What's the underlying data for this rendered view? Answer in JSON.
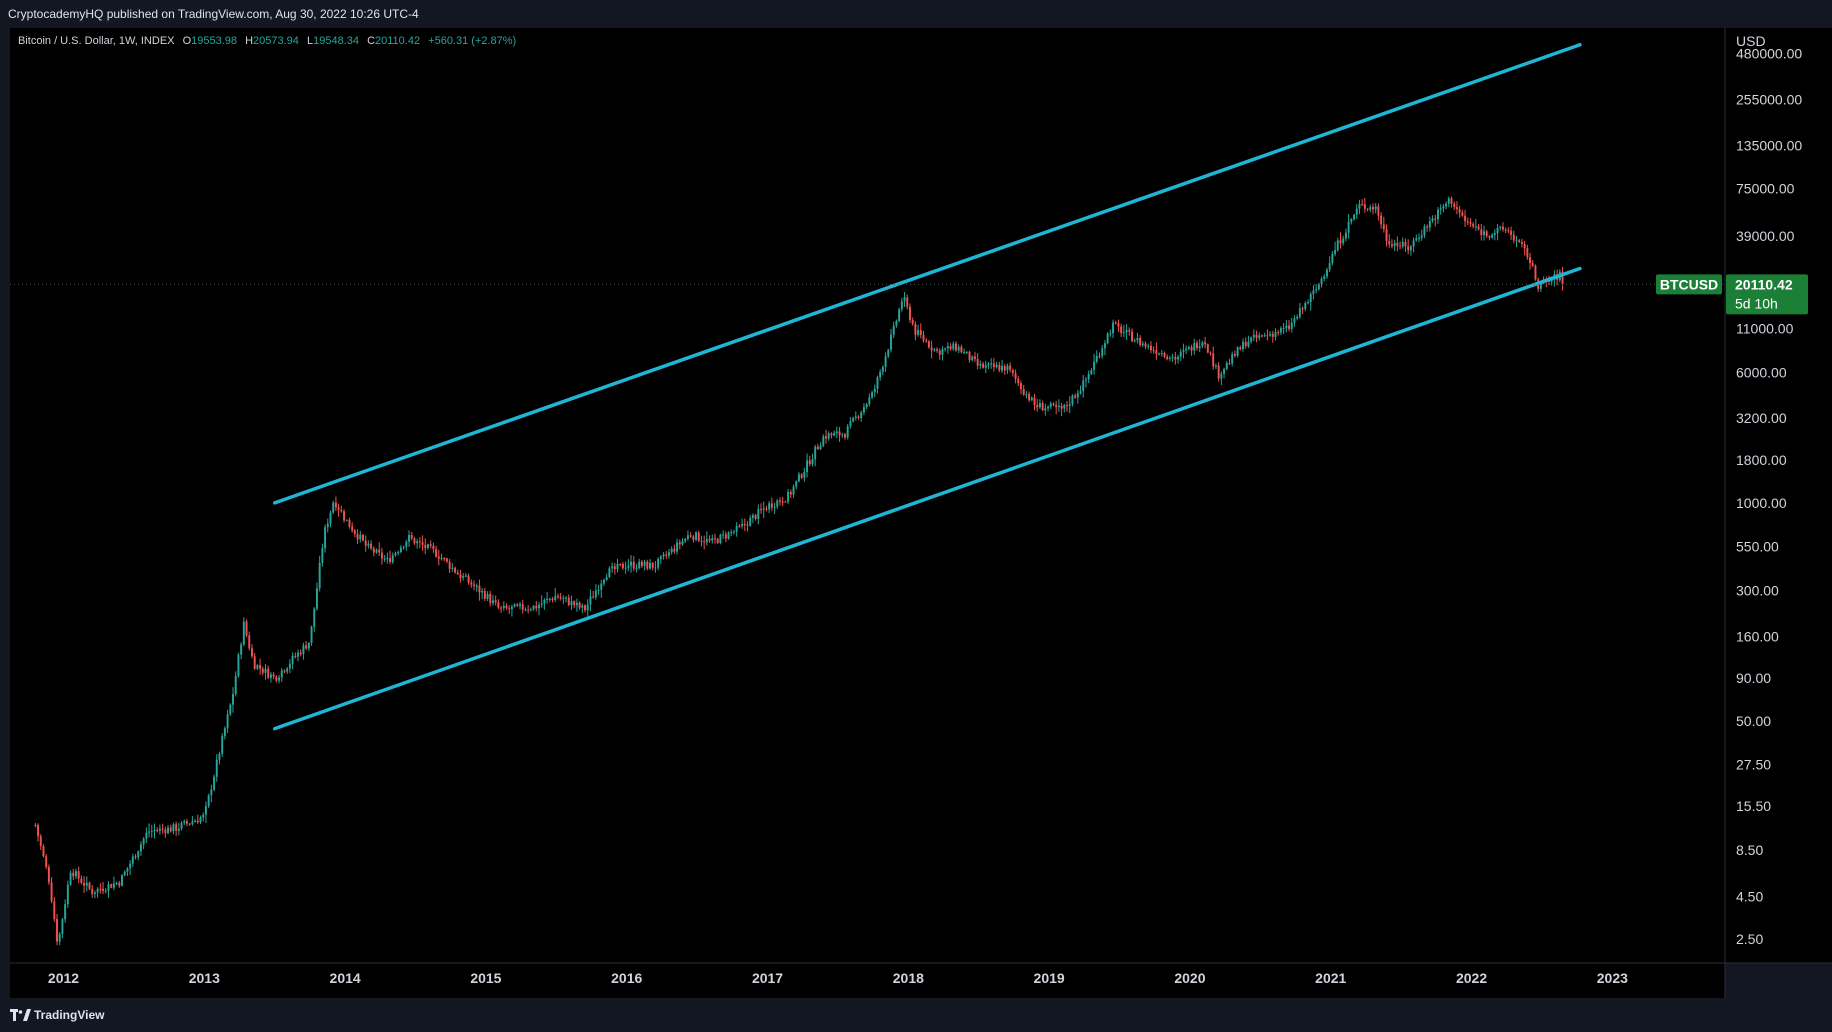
{
  "header": {
    "publisher_line": "CryptocademyHQ published on TradingView.com, Aug 30, 2022 10:26 UTC-4"
  },
  "footer": {
    "brand": "TradingView"
  },
  "legend": {
    "symbol": "Bitcoin / U.S. Dollar, 1W, INDEX",
    "o_label": "O",
    "o_value": "19553.98",
    "h_label": "H",
    "h_value": "20573.94",
    "l_label": "L",
    "l_value": "19548.34",
    "c_label": "C",
    "c_value": "20110.42",
    "change": "+560.31 (+2.87%)"
  },
  "price_scale": {
    "currency": "USD",
    "ticks": [
      "480000.00",
      "255000.00",
      "135000.00",
      "75000.00",
      "39000.00",
      "11000.00",
      "6000.00",
      "3200.00",
      "1800.00",
      "1000.00",
      "550.00",
      "300.00",
      "160.00",
      "90.00",
      "50.00",
      "27.50",
      "15.50",
      "8.50",
      "4.50",
      "2.50"
    ]
  },
  "last_price": {
    "symbol_tag": "BTCUSD",
    "value": "20110.42",
    "countdown": "5d 10h"
  },
  "colors": {
    "background": "#000000",
    "panel": "#131722",
    "up": "#26a69a",
    "down": "#ef5350",
    "channel": "#1fb6d6",
    "last_price_bg": "#1b7f37"
  },
  "chart_data": {
    "type": "candlestick",
    "title": "Bitcoin / U.S. Dollar, 1W, INDEX",
    "interval": "1W",
    "y_scale": "log",
    "ylim": [
      1.8,
      680000
    ],
    "x_ticks": [
      "2012",
      "2013",
      "2014",
      "2015",
      "2016",
      "2017",
      "2018",
      "2019",
      "2020",
      "2021",
      "2022",
      "2023"
    ],
    "grid": false,
    "anchors": [
      {
        "t": 2011.8,
        "price": 12.0
      },
      {
        "t": 2011.9,
        "price": 5.5
      },
      {
        "t": 2011.96,
        "price": 2.3
      },
      {
        "t": 2012.05,
        "price": 6.5
      },
      {
        "t": 2012.2,
        "price": 4.8
      },
      {
        "t": 2012.4,
        "price": 5.5
      },
      {
        "t": 2012.6,
        "price": 11.0
      },
      {
        "t": 2012.8,
        "price": 11.5
      },
      {
        "t": 2013.0,
        "price": 13.5
      },
      {
        "t": 2013.2,
        "price": 70.0
      },
      {
        "t": 2013.28,
        "price": 190.0
      },
      {
        "t": 2013.35,
        "price": 110.0
      },
      {
        "t": 2013.5,
        "price": 90.0
      },
      {
        "t": 2013.75,
        "price": 150.0
      },
      {
        "t": 2013.85,
        "price": 650.0
      },
      {
        "t": 2013.92,
        "price": 1050.0
      },
      {
        "t": 2014.0,
        "price": 800.0
      },
      {
        "t": 2014.15,
        "price": 550.0
      },
      {
        "t": 2014.3,
        "price": 450.0
      },
      {
        "t": 2014.45,
        "price": 620.0
      },
      {
        "t": 2014.65,
        "price": 500.0
      },
      {
        "t": 2014.8,
        "price": 380.0
      },
      {
        "t": 2015.0,
        "price": 280.0
      },
      {
        "t": 2015.1,
        "price": 230.0
      },
      {
        "t": 2015.35,
        "price": 240.0
      },
      {
        "t": 2015.5,
        "price": 280.0
      },
      {
        "t": 2015.7,
        "price": 230.0
      },
      {
        "t": 2015.85,
        "price": 380.0
      },
      {
        "t": 2016.0,
        "price": 430.0
      },
      {
        "t": 2016.2,
        "price": 420.0
      },
      {
        "t": 2016.45,
        "price": 650.0
      },
      {
        "t": 2016.6,
        "price": 580.0
      },
      {
        "t": 2016.8,
        "price": 700.0
      },
      {
        "t": 2017.0,
        "price": 960.0
      },
      {
        "t": 2017.15,
        "price": 1100.0
      },
      {
        "t": 2017.4,
        "price": 2500.0
      },
      {
        "t": 2017.55,
        "price": 2600.0
      },
      {
        "t": 2017.75,
        "price": 4500.0
      },
      {
        "t": 2017.9,
        "price": 11000.0
      },
      {
        "t": 2017.96,
        "price": 17000.0
      },
      {
        "t": 2018.05,
        "price": 10500.0
      },
      {
        "t": 2018.2,
        "price": 8000.0
      },
      {
        "t": 2018.35,
        "price": 8500.0
      },
      {
        "t": 2018.5,
        "price": 6500.0
      },
      {
        "t": 2018.7,
        "price": 6400.0
      },
      {
        "t": 2018.9,
        "price": 3800.0
      },
      {
        "t": 2019.1,
        "price": 3600.0
      },
      {
        "t": 2019.25,
        "price": 5200.0
      },
      {
        "t": 2019.45,
        "price": 11500.0
      },
      {
        "t": 2019.7,
        "price": 8500.0
      },
      {
        "t": 2019.9,
        "price": 7300.0
      },
      {
        "t": 2020.1,
        "price": 9500.0
      },
      {
        "t": 2020.2,
        "price": 5800.0
      },
      {
        "t": 2020.4,
        "price": 9200.0
      },
      {
        "t": 2020.7,
        "price": 11000.0
      },
      {
        "t": 2020.9,
        "price": 19000.0
      },
      {
        "t": 2021.05,
        "price": 35000.0
      },
      {
        "t": 2021.2,
        "price": 59000.0
      },
      {
        "t": 2021.32,
        "price": 58000.0
      },
      {
        "t": 2021.4,
        "price": 37000.0
      },
      {
        "t": 2021.55,
        "price": 33000.0
      },
      {
        "t": 2021.7,
        "price": 47000.0
      },
      {
        "t": 2021.85,
        "price": 65000.0
      },
      {
        "t": 2021.95,
        "price": 48000.0
      },
      {
        "t": 2022.1,
        "price": 40000.0
      },
      {
        "t": 2022.25,
        "price": 43000.0
      },
      {
        "t": 2022.4,
        "price": 30000.0
      },
      {
        "t": 2022.47,
        "price": 20000.0
      },
      {
        "t": 2022.55,
        "price": 21000.0
      },
      {
        "t": 2022.65,
        "price": 23500.0
      },
      {
        "t": 2022.66,
        "price": 20110.42
      }
    ],
    "channel_lines": [
      {
        "name": "upper",
        "points": [
          {
            "t": 2013.5,
            "price": 1000
          },
          {
            "t": 2022.77,
            "price": 540000
          }
        ]
      },
      {
        "name": "lower",
        "points": [
          {
            "t": 2013.5,
            "price": 45
          },
          {
            "t": 2022.77,
            "price": 25000
          }
        ]
      }
    ]
  }
}
